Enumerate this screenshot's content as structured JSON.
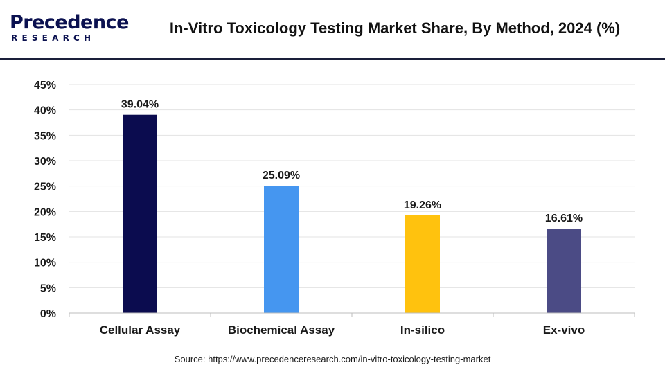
{
  "logo": {
    "word": "Precedence",
    "sub": "RESEARCH"
  },
  "title": "In-Vitro Toxicology Testing Market Share, By Method, 2024 (%)",
  "source": "Source: https://www.precedenceresearch.com/in-vitro-toxicology-testing-market",
  "chart_data": {
    "type": "bar",
    "title": "In-Vitro Toxicology Testing Market Share, By Method, 2024 (%)",
    "categories": [
      "Cellular Assay",
      "Biochemical Assay",
      "In-silico",
      "Ex-vivo"
    ],
    "values": [
      39.04,
      25.09,
      19.26,
      16.61
    ],
    "data_labels": [
      "39.04%",
      "25.09%",
      "19.26%",
      "16.61%"
    ],
    "bar_colors": [
      "#0b0c4f",
      "#4596f0",
      "#ffc20e",
      "#4b4b85"
    ],
    "yticks": [
      0,
      5,
      10,
      15,
      20,
      25,
      30,
      35,
      40,
      45
    ],
    "ytick_labels": [
      "0%",
      "5%",
      "10%",
      "15%",
      "20%",
      "25%",
      "30%",
      "35%",
      "40%",
      "45%"
    ],
    "ylim": [
      0,
      45
    ],
    "xlabel": "",
    "ylabel": "",
    "grid": true,
    "legend": "none"
  }
}
